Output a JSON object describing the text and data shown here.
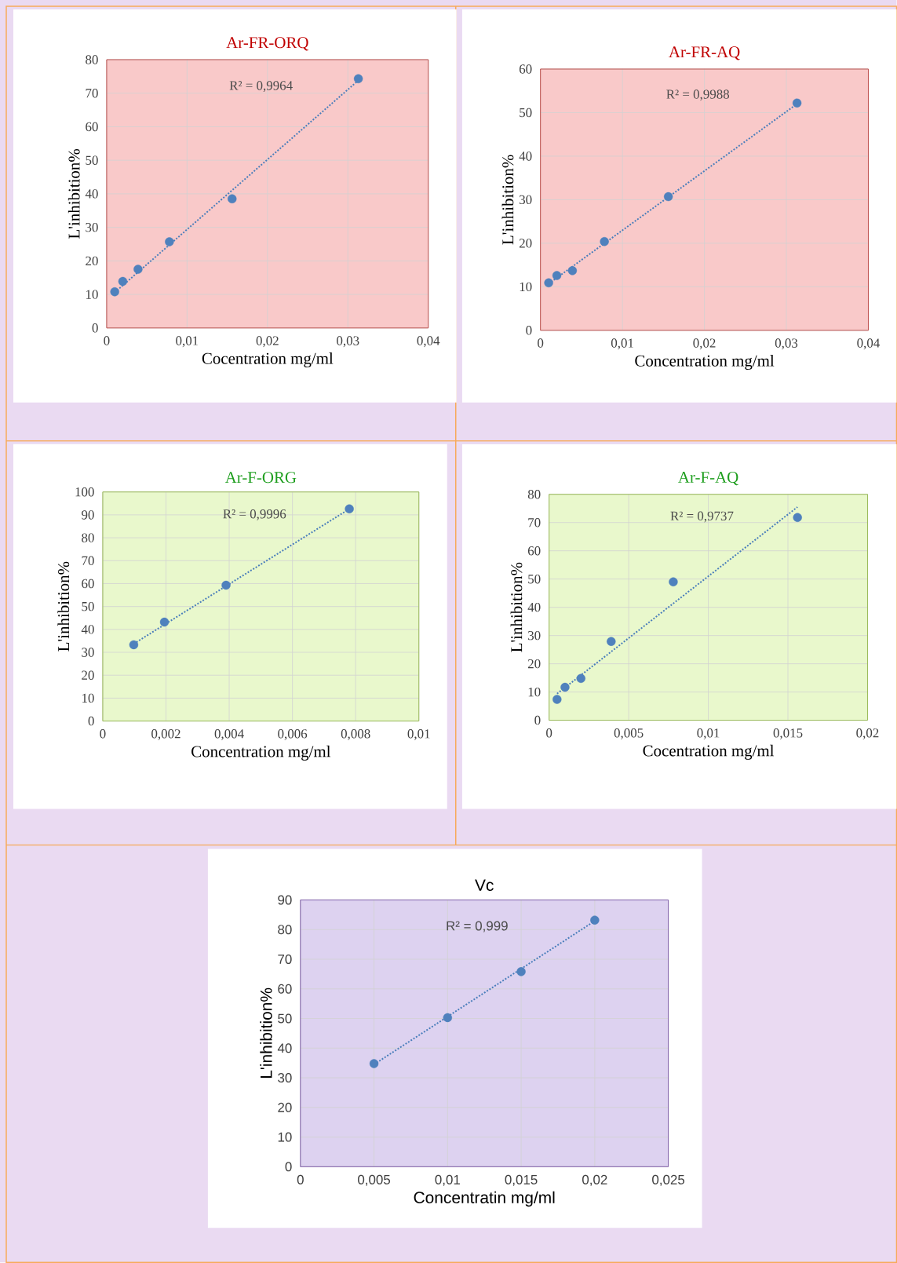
{
  "chart_data": [
    {
      "type": "scatter",
      "title": "Ar-FR-ORQ",
      "xlabel": "Cocentration mg/ml",
      "ylabel": "L'inhibition%",
      "xlim": [
        0,
        0.04
      ],
      "ylim": [
        0,
        80
      ],
      "xticks": [
        0,
        {
          "value": 0.01,
          "label": "0,01"
        },
        {
          "value": 0.02,
          "label": "0,02"
        },
        {
          "value": 0.03,
          "label": "0,03"
        },
        {
          "value": 0.04,
          "label": "0,04"
        }
      ],
      "yticks": [
        0,
        10,
        20,
        30,
        40,
        50,
        60,
        70,
        80
      ],
      "grid": true,
      "marker": "circle",
      "annotations": [
        "R² = 0,9964"
      ],
      "series": [
        {
          "color": "#4f81bd",
          "x": [
            0.001,
            0.002,
            0.0039,
            0.0078,
            0.0156,
            0.0313
          ],
          "values": [
            10.8,
            13.9,
            17.5,
            25.7,
            38.5,
            74.3
          ]
        },
        {
          "type": "line",
          "marker": "none",
          "line_style": "dotted",
          "color": "#4a7ebb",
          "x": [
            0.001,
            0.0313
          ],
          "values": [
            10.6,
            73.8
          ]
        }
      ]
    },
    {
      "type": "scatter",
      "title": "Ar-FR-AQ",
      "xlabel": "Concentration mg/ml",
      "ylabel": "L'inhibition%",
      "xlim": [
        0,
        0.04
      ],
      "ylim": [
        0,
        60
      ],
      "xticks": [
        0,
        {
          "value": 0.01,
          "label": "0,01"
        },
        {
          "value": 0.02,
          "label": "0,02"
        },
        {
          "value": 0.03,
          "label": "0,03"
        },
        {
          "value": 0.04,
          "label": "0,04"
        }
      ],
      "yticks": [
        0,
        10,
        20,
        30,
        40,
        50,
        60
      ],
      "grid": true,
      "marker": "circle",
      "annotations": [
        "R² = 0,9988"
      ],
      "series": [
        {
          "color": "#4f81bd",
          "x": [
            0.001,
            0.002,
            0.0039,
            0.0078,
            0.0156,
            0.0313
          ],
          "values": [
            10.9,
            12.6,
            13.7,
            20.4,
            30.7,
            52.2
          ]
        },
        {
          "type": "line",
          "marker": "none",
          "line_style": "dotted",
          "color": "#4a7ebb",
          "x": [
            0.001,
            0.0313
          ],
          "values": [
            10.7,
            52.0
          ]
        }
      ]
    },
    {
      "type": "scatter",
      "title": "Ar-F-ORG",
      "xlabel": "Concentration mg/ml",
      "ylabel": "L'inhibition%",
      "xlim": [
        0,
        0.01
      ],
      "ylim": [
        0,
        100
      ],
      "xticks": [
        0,
        {
          "value": 0.002,
          "label": "0,002"
        },
        {
          "value": 0.004,
          "label": "0,004"
        },
        {
          "value": 0.006,
          "label": "0,006"
        },
        {
          "value": 0.008,
          "label": "0,008"
        },
        {
          "value": 0.01,
          "label": "0,01"
        }
      ],
      "yticks": [
        0,
        10,
        20,
        30,
        40,
        50,
        60,
        70,
        80,
        90,
        100
      ],
      "grid": true,
      "marker": "circle",
      "annotations": [
        "R² = 0,9996"
      ],
      "series": [
        {
          "color": "#4f81bd",
          "x": [
            0.00098,
            0.00195,
            0.0039,
            0.0078
          ],
          "values": [
            33.3,
            43.2,
            59.3,
            92.6
          ]
        },
        {
          "type": "line",
          "marker": "none",
          "line_style": "dotted",
          "color": "#4a7ebb",
          "x": [
            0.00098,
            0.0078
          ],
          "values": [
            33.7,
            92.6
          ]
        }
      ]
    },
    {
      "type": "scatter",
      "title": "Ar-F-AQ",
      "xlabel": "Cocentration mg/ml",
      "ylabel": "L'inhibition%",
      "xlim": [
        0,
        0.02
      ],
      "ylim": [
        0,
        80
      ],
      "xticks": [
        0,
        {
          "value": 0.005,
          "label": "0,005"
        },
        {
          "value": 0.01,
          "label": "0,01"
        },
        {
          "value": 0.015,
          "label": "0,015"
        },
        {
          "value": 0.02,
          "label": "0,02"
        }
      ],
      "yticks": [
        0,
        10,
        20,
        30,
        40,
        50,
        60,
        70,
        80
      ],
      "grid": true,
      "marker": "circle",
      "annotations": [
        "R² = 0,9737"
      ],
      "series": [
        {
          "color": "#4f81bd",
          "x": [
            0.0005,
            0.001,
            0.002,
            0.0039,
            0.0078,
            0.0156
          ],
          "values": [
            7.4,
            11.7,
            14.8,
            27.9,
            49.0,
            71.8
          ]
        },
        {
          "type": "line",
          "marker": "none",
          "line_style": "dotted",
          "color": "#4a7ebb",
          "x": [
            0.0005,
            0.0156
          ],
          "values": [
            9.4,
            75.5
          ]
        }
      ]
    },
    {
      "type": "scatter",
      "title": "Vc",
      "xlabel": "Concentratin mg/ml",
      "ylabel": "L'inhibition%",
      "xlim": [
        0,
        0.025
      ],
      "ylim": [
        0,
        90
      ],
      "xticks": [
        0,
        {
          "value": 0.005,
          "label": "0,005"
        },
        {
          "value": 0.01,
          "label": "0,01"
        },
        {
          "value": 0.015,
          "label": "0,015"
        },
        {
          "value": 0.02,
          "label": "0,02"
        },
        {
          "value": 0.025,
          "label": "0,025"
        }
      ],
      "yticks": [
        0,
        10,
        20,
        30,
        40,
        50,
        60,
        70,
        80,
        90
      ],
      "grid": true,
      "marker": "circle",
      "annotations": [
        "R² = 0,999"
      ],
      "series": [
        {
          "color": "#4f81bd",
          "x": [
            0.005,
            0.01,
            0.015,
            0.02
          ],
          "values": [
            34.8,
            50.3,
            65.8,
            83.2
          ]
        },
        {
          "type": "line",
          "marker": "none",
          "line_style": "dotted",
          "color": "#4a7ebb",
          "x": [
            0.005,
            0.02
          ],
          "values": [
            34.5,
            82.9
          ]
        }
      ]
    }
  ]
}
